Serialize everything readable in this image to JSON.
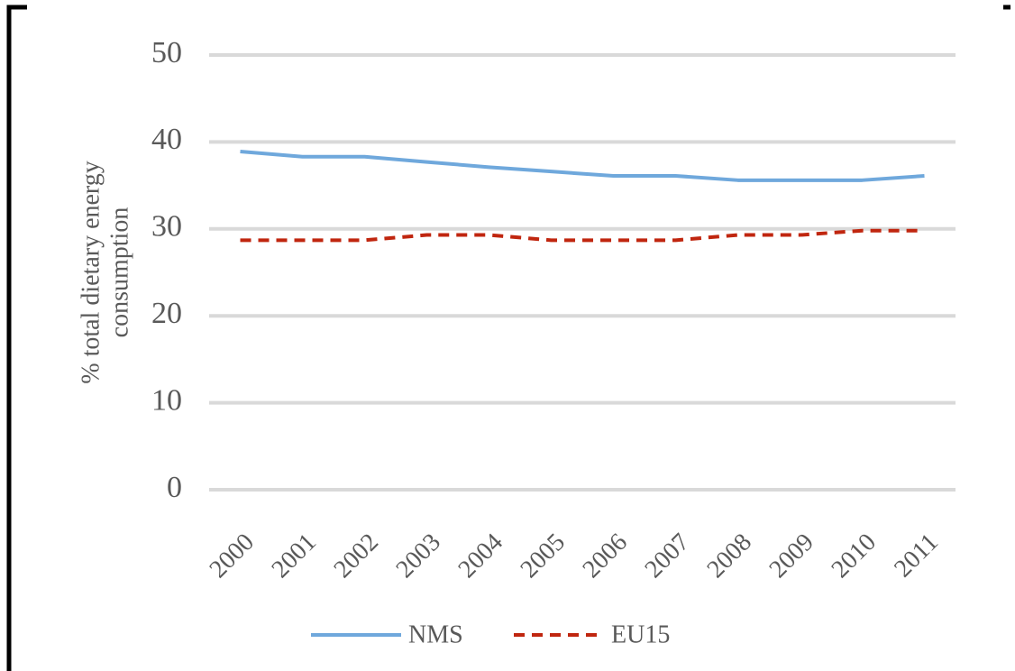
{
  "chart_data": {
    "type": "line",
    "ylabel": [
      "% total dietary energy",
      "consumption"
    ],
    "categories": [
      "2000",
      "2001",
      "2002",
      "2003",
      "2004",
      "2005",
      "2006",
      "2007",
      "2008",
      "2009",
      "2010",
      "2011"
    ],
    "series": [
      {
        "name": "NMS",
        "color": "#6fa8dc",
        "dash": false,
        "values": [
          38.9,
          38.3,
          38.3,
          37.7,
          37.1,
          36.6,
          36.1,
          36.1,
          35.6,
          35.6,
          35.6,
          36.1
        ]
      },
      {
        "name": "EU15",
        "color": "#c0260f",
        "dash": true,
        "values": [
          28.7,
          28.7,
          28.7,
          29.3,
          29.3,
          28.7,
          28.7,
          28.7,
          29.3,
          29.3,
          29.8,
          29.8
        ]
      }
    ],
    "ylim": [
      0,
      50
    ],
    "yticks": [
      0,
      10,
      20,
      30,
      40,
      50
    ],
    "grid": true,
    "legend": "bottom"
  }
}
